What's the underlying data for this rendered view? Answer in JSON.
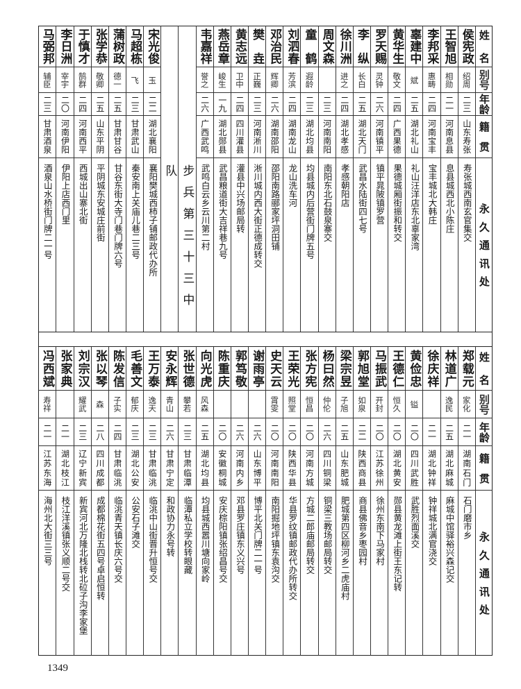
{
  "header": {
    "name": "姓名",
    "alias": "别号",
    "age": "年龄",
    "native": "籍贯",
    "address": "永久通讯处"
  },
  "top_section_title": "步兵第三十三中队",
  "top_group_a": [
    {
      "name": "侯宪政",
      "alias": "绍周",
      "age": "二三",
      "native": "山东寿张",
      "address": "寿张城西南玄官集交"
    },
    {
      "name": "王智旭",
      "alias": "相勋",
      "age": "二一",
      "native": "河南息县",
      "address": "息县城西北小陈庄"
    },
    {
      "name": "李邦采",
      "alias": "惠畴",
      "age": "二四",
      "native": "河南宝丰",
      "address": "宝丰城北大韩庄"
    },
    {
      "name": "辜建中",
      "alias": "斌",
      "age": "二五",
      "native": "湖北礼山",
      "address": "礼山汪洋店东北辜家湾"
    },
    {
      "name": "黄华生",
      "alias": "敬文",
      "age": "二四",
      "native": "广西果德",
      "address": "果德城厢街振和转交"
    },
    {
      "name": "罗天赐",
      "alias": "灵钟",
      "age": "二六",
      "native": "河南镇平",
      "address": "镇平晁陂镇罗营"
    },
    {
      "name": "李纵",
      "alias": "长白",
      "age": "二五",
      "native": "湖北天门",
      "address": "武昌水陆街四七号"
    },
    {
      "name": "徐川洲",
      "alias": "进之",
      "age": "二四",
      "native": "湖北孝感",
      "address": "孝感朝阳店"
    },
    {
      "name": "周文森",
      "alias": "",
      "age": "二三",
      "native": "河南南阳",
      "address": "南阳东北石鼓泉寨交"
    },
    {
      "name": "童鹤",
      "alias": "遐龄",
      "age": "二三",
      "native": "湖北均县",
      "address": "均县城内后营街门牌五号"
    },
    {
      "name": "刘泗春",
      "alias": "芳滨",
      "age": "二四",
      "native": "湖南龙山",
      "address": "龙山洗车河"
    },
    {
      "name": "邓治民",
      "alias": "辉卿",
      "age": "二六",
      "native": "湖南邵阳",
      "address": "邵阳南路郦家坪洞田铺"
    },
    {
      "name": "樊垚",
      "alias": "正巍",
      "age": "二三",
      "native": "河南淅川",
      "address": "淅川城内西大街正德成转交"
    },
    {
      "name": "黄志远",
      "alias": "卫中",
      "age": "二四",
      "native": "四川灌县",
      "address": "灌县中兴场邮局转"
    },
    {
      "name": "燕岳章",
      "alias": "峻生",
      "age": "一九",
      "native": "湖北郧县",
      "address": "武昌粮道街大吉祥巷九号"
    },
    {
      "name": "韦嘉祥",
      "alias": "誉之",
      "age": "二六",
      "native": "广西武鸣",
      "address": "武鸣白云乡云川第二村"
    }
  ],
  "top_group_b": [
    {
      "name": "宋光俊",
      "alias": "玉",
      "age": "二二",
      "native": "湖北襄阳",
      "address": "襄阳樊城西柿子铺邮政代办所"
    },
    {
      "name": "马超栋",
      "alias": "飞",
      "age": "二三",
      "native": "甘肃武山",
      "address": "秦安南上关庙儿巷二三号"
    },
    {
      "name": "蒲树政",
      "alias": "德一",
      "age": "二五",
      "native": "甘肃甘谷",
      "address": "甘谷东街大寺门巷门牌六号"
    },
    {
      "name": "张学恭",
      "alias": "敬卿",
      "age": "二五",
      "native": "山东平阴",
      "address": "平阴城东安城庄前街"
    },
    {
      "name": "于慎才",
      "alias": "鹄群",
      "age": "二四",
      "native": "河南西平",
      "address": "西城出山寨北街"
    },
    {
      "name": "李日洲",
      "alias": "宰宇",
      "age": "二〇",
      "native": "河南伊阳",
      "address": "伊阳上店西门里"
    },
    {
      "name": "马弼邦",
      "alias": "辅臣",
      "age": "二三",
      "native": "甘肃酒泉",
      "address": "酒泉山水桥街门牌二一号"
    }
  ],
  "bottom": [
    {
      "name": "郑载元",
      "alias": "家化",
      "age": "二一",
      "native": "湖南石门",
      "address": "石门磨市乡"
    },
    {
      "name": "林道广",
      "alias": "逸民",
      "age": "二五",
      "native": "湖北麻城",
      "address": "麻城中馆驿裕兴森记交"
    },
    {
      "name": "徐庆祥",
      "alias": "",
      "age": "二一",
      "native": "湖北钟祥",
      "address": "钟祥城北满官浇交"
    },
    {
      "name": "黄俭忠",
      "alias": "镒",
      "age": "二〇",
      "native": "四川武胜",
      "address": "武胜烈面溪交"
    },
    {
      "name": "王德仁",
      "alias": "恒久",
      "age": "二〇",
      "native": "湖北黄安",
      "address": "郧县黄龙滩上街王东记转"
    },
    {
      "name": "马振武",
      "alias": "开封",
      "age": "二〇",
      "native": "江苏徐州",
      "address": "徐州东南下马家村"
    },
    {
      "name": "郭旭堂",
      "alias": "如泉",
      "age": "二二",
      "native": "陕西商县",
      "address": "商县佛音乡枣园村"
    },
    {
      "name": "梁宗昱",
      "alias": "子旭",
      "age": "二五",
      "native": "山东肥城",
      "address": "肥城第四区柳河乡二虎庙村"
    },
    {
      "name": "杨曰然",
      "alias": "仲伦",
      "age": "二六",
      "native": "四川铜梁",
      "address": "铜梁三教场邮局转交"
    },
    {
      "name": "张方宪",
      "alias": "恒昌",
      "age": "二〇",
      "native": "河南方城",
      "address": "方城二郎庙邮局转交"
    },
    {
      "name": "王荣光",
      "alias": "照堂",
      "age": "二〇",
      "native": "陕西华县",
      "address": "华县罗纹镇邮政代办所转交"
    },
    {
      "name": "史天云",
      "alias": "霄雯",
      "age": "二〇",
      "native": "河南南阳",
      "address": "南阳掘地坪镇东袁沟交"
    },
    {
      "name": "谢雨亭",
      "alias": "",
      "age": "二六",
      "native": "山东博平",
      "address": "博平北关门牌二一号"
    },
    {
      "name": "郭笃敬",
      "alias": "",
      "age": "二六",
      "native": "河南内乡",
      "address": "邓县罗庄镇东义兴号"
    },
    {
      "name": "陈重庆",
      "alias": "",
      "age": "二〇",
      "native": "安徽桐城",
      "address": "安庆棕阳镇张绍昌号交"
    },
    {
      "name": "向光虎",
      "alias": "风森",
      "age": "二五",
      "native": "湖北均县",
      "address": "均县城西嚣川塘向家岭"
    },
    {
      "name": "张世德",
      "alias": "攀若",
      "age": "二三",
      "native": "甘肃临潭",
      "address": "临潭私立学校转眼藏"
    },
    {
      "name": "安永辉",
      "alias": "青山",
      "age": "二六",
      "native": "甘肃宁定",
      "address": "和政协力永号转"
    },
    {
      "name": "王万泰",
      "alias": "逸天",
      "age": "二三",
      "native": "甘肃临洮",
      "address": "临洮中山街晋升恒号交"
    },
    {
      "name": "毛善文",
      "alias": "郁庆",
      "age": "二三",
      "native": "湖北公安",
      "address": "公安石子滩交"
    },
    {
      "name": "陈发信",
      "alias": "子实",
      "age": "二四",
      "native": "甘肃临洮",
      "address": "临洮青天镇长庆六号交"
    },
    {
      "name": "张以琴",
      "alias": "森",
      "age": "二八",
      "native": "四川成都",
      "address": "成都棉花街五四号卓启恒转"
    },
    {
      "name": "刘宗汉",
      "alias": "耀武",
      "age": "二三",
      "native": "辽宁新宾",
      "address": "新宾河北万隆北栈转北砬子沟李家堡"
    },
    {
      "name": "张家典",
      "alias": "",
      "age": "二一",
      "native": "湖北枝江",
      "address": "枝江洋溪镇张义顺二号交"
    },
    {
      "name": "冯西斌",
      "alias": "寿祥",
      "age": "二一",
      "native": "江苏东海",
      "address": "海州北大街三三号"
    }
  ],
  "page_number": "1349"
}
